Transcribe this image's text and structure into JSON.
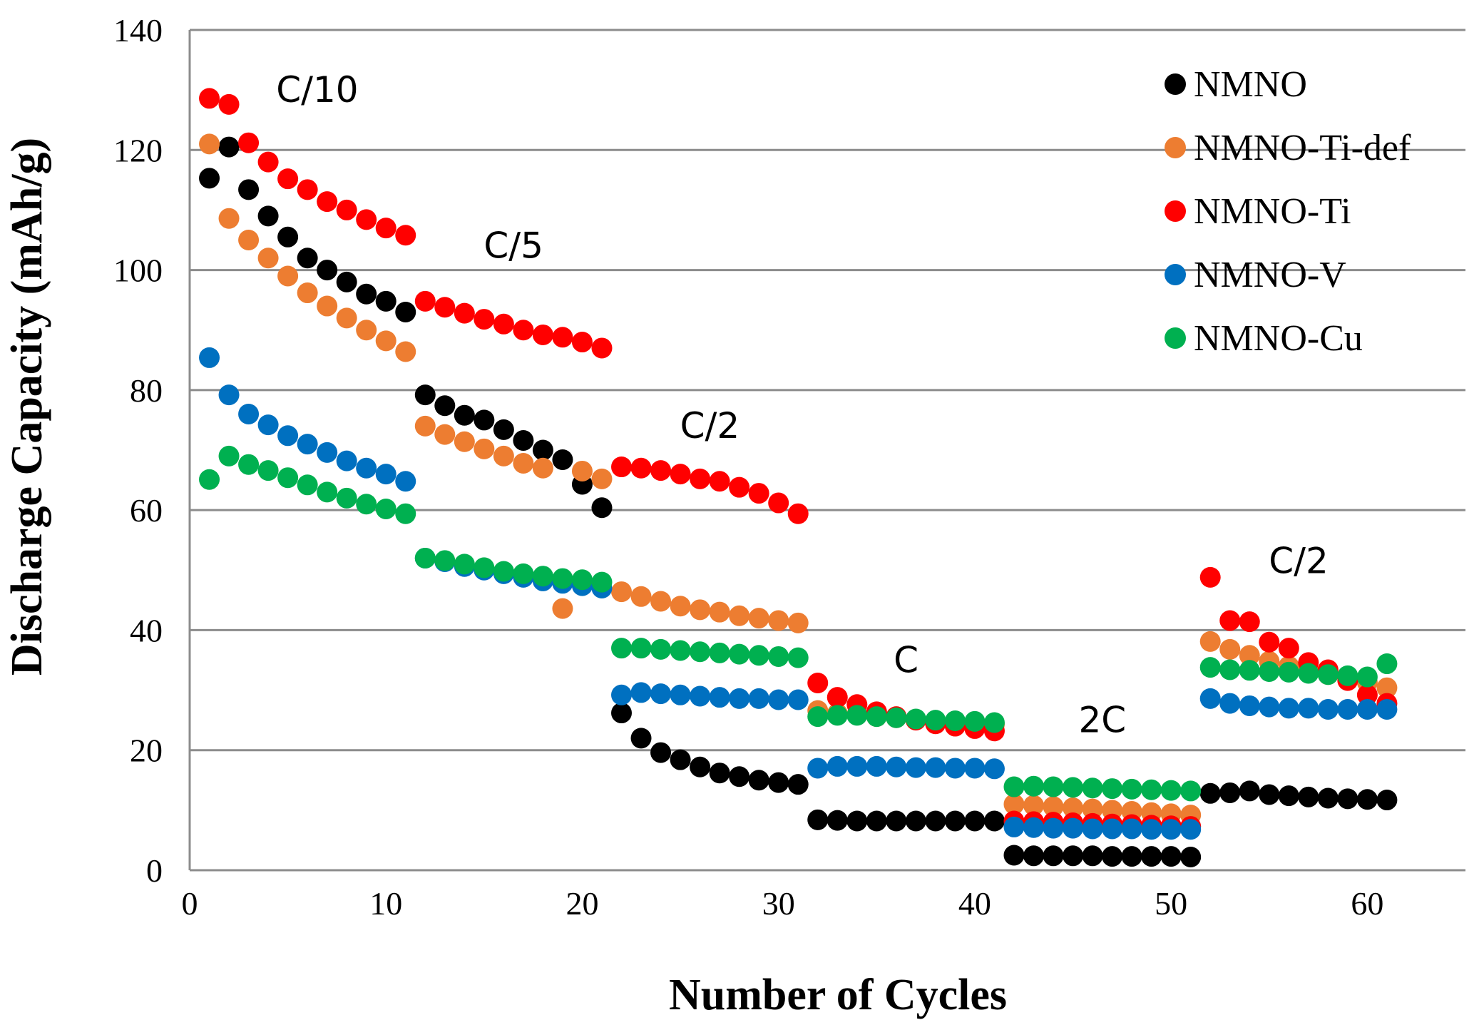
{
  "chart_data": {
    "type": "scatter",
    "title": "",
    "xlabel": "Number of Cycles",
    "ylabel": "Discharge Capacity (mAh/g)",
    "xlim": [
      0,
      65
    ],
    "ylim": [
      0,
      140
    ],
    "xticks": [
      0,
      10,
      20,
      30,
      40,
      50,
      60
    ],
    "yticks": [
      0,
      20,
      40,
      60,
      80,
      100,
      120,
      140
    ],
    "grid": "horizontal",
    "legend_position": "top-right",
    "x": [
      1,
      2,
      3,
      4,
      5,
      6,
      7,
      8,
      9,
      10,
      11,
      12,
      13,
      14,
      15,
      16,
      17,
      18,
      19,
      20,
      21,
      22,
      23,
      24,
      25,
      26,
      27,
      28,
      29,
      30,
      31,
      32,
      33,
      34,
      35,
      36,
      37,
      38,
      39,
      40,
      41,
      42,
      43,
      44,
      45,
      46,
      47,
      48,
      49,
      50,
      51,
      52,
      53,
      54,
      55,
      56,
      57,
      58,
      59,
      60,
      61
    ],
    "series": [
      {
        "name": "NMNO",
        "color": "#000000",
        "values": [
          115.3,
          120.5,
          113.4,
          109,
          105.5,
          102,
          100,
          98,
          96,
          94.8,
          93,
          79.2,
          77.4,
          75.8,
          75,
          73.4,
          71.6,
          70,
          68.4,
          64.3,
          60.4,
          26.2,
          22,
          19.6,
          18.4,
          17.2,
          16.2,
          15.6,
          15,
          14.6,
          14.3,
          8.4,
          8.3,
          8.2,
          8.2,
          8.2,
          8.2,
          8.2,
          8.2,
          8.2,
          8.2,
          2.5,
          2.4,
          2.4,
          2.4,
          2.4,
          2.3,
          2.3,
          2.3,
          2.3,
          2.2,
          12.8,
          12.9,
          13.2,
          12.6,
          12.4,
          12.2,
          12,
          11.9,
          11.8,
          11.7
        ]
      },
      {
        "name": "NMNO-Ti-def",
        "color": "#ED7D31",
        "values": [
          121,
          108.6,
          105,
          102,
          99,
          96.2,
          94,
          92,
          90,
          88.2,
          86.4,
          74,
          72.6,
          71.4,
          70.2,
          69,
          67.8,
          67,
          43.6,
          66.5,
          65.2,
          46.4,
          45.6,
          44.8,
          44,
          43.4,
          43,
          42.4,
          42,
          41.6,
          41.2,
          26.6,
          26.1,
          25.9,
          25.6,
          25.4,
          25.1,
          24.9,
          24.7,
          24.5,
          24.3,
          11,
          10.8,
          10.6,
          10.4,
          10.2,
          10,
          9.8,
          9.6,
          9.4,
          9.2,
          38.1,
          36.8,
          35.8,
          34.8,
          34,
          33.3,
          32.6,
          32,
          31.3,
          30.4
        ]
      },
      {
        "name": "NMNO-Ti",
        "color": "#FF0000",
        "values": [
          128.6,
          127.6,
          121.2,
          118,
          115.2,
          113.4,
          111.4,
          110,
          108.4,
          107,
          105.8,
          94.8,
          93.8,
          92.8,
          91.8,
          91,
          90,
          89.2,
          88.8,
          88,
          87,
          67.2,
          67,
          66.6,
          66,
          65.2,
          64.8,
          63.8,
          62.8,
          61.2,
          59.4,
          31.2,
          28.8,
          27.6,
          26.4,
          25.6,
          25,
          24.4,
          24,
          23.6,
          23.2,
          8.2,
          8.1,
          8,
          7.9,
          7.8,
          7.7,
          7.6,
          7.5,
          7.4,
          7.3,
          48.8,
          41.6,
          41.4,
          38,
          37,
          34.6,
          33.4,
          31.6,
          29.2,
          27.8
        ]
      },
      {
        "name": "NMNO-V",
        "color": "#0070C0",
        "values": [
          85.4,
          79.2,
          76,
          74.2,
          72.4,
          71,
          69.6,
          68.2,
          67,
          66,
          64.8,
          52,
          51.4,
          50.6,
          50,
          49.4,
          48.8,
          48.2,
          47.8,
          47.4,
          47,
          29.2,
          29.6,
          29.4,
          29.2,
          29,
          28.8,
          28.6,
          28.6,
          28.4,
          28.4,
          17,
          17.3,
          17.3,
          17.3,
          17.2,
          17.1,
          17.1,
          17,
          17,
          16.9,
          7.2,
          7.1,
          7,
          7,
          6.9,
          6.9,
          6.9,
          6.8,
          6.8,
          6.8,
          28.6,
          27.8,
          27.4,
          27.2,
          27,
          27,
          26.8,
          26.8,
          26.8,
          26.8
        ]
      },
      {
        "name": "NMNO-Cu",
        "color": "#00B050",
        "values": [
          65.1,
          69,
          67.6,
          66.6,
          65.4,
          64.2,
          63,
          62,
          61,
          60.2,
          59.4,
          52,
          51.6,
          51,
          50.4,
          49.8,
          49.4,
          49,
          48.6,
          48.4,
          48,
          37,
          37,
          36.8,
          36.6,
          36.4,
          36.2,
          36,
          35.8,
          35.6,
          35.4,
          25.6,
          25.8,
          25.8,
          25.6,
          25.4,
          25.2,
          25,
          24.9,
          24.8,
          24.6,
          13.9,
          14,
          13.9,
          13.8,
          13.7,
          13.6,
          13.5,
          13.4,
          13.3,
          13.2,
          33.8,
          33.4,
          33.3,
          33.1,
          33,
          32.8,
          32.6,
          32.4,
          32.2,
          34.4
        ]
      }
    ],
    "annotations": [
      {
        "text": "C/10",
        "x": 6.5,
        "y": 128
      },
      {
        "text": "C/5",
        "x": 16.5,
        "y": 102
      },
      {
        "text": "C/2",
        "x": 26.5,
        "y": 72
      },
      {
        "text": "C",
        "x": 36.5,
        "y": 33
      },
      {
        "text": "2C",
        "x": 46.5,
        "y": 23
      },
      {
        "text": "C/2",
        "x": 56.5,
        "y": 49.5
      }
    ]
  }
}
